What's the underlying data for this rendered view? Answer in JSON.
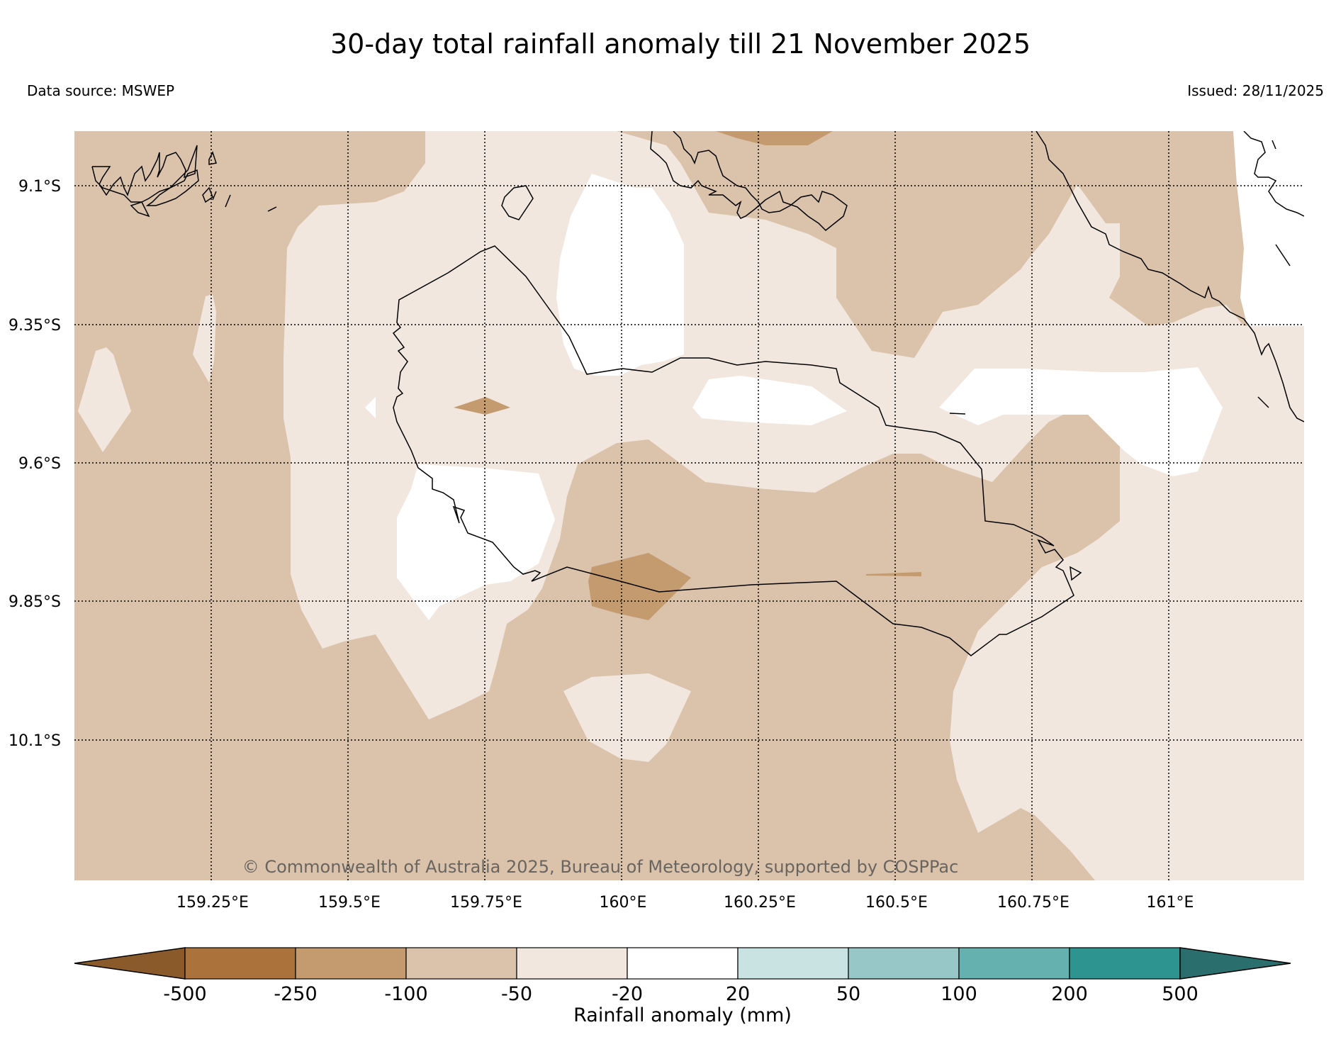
{
  "title": "30-day total rainfall anomaly till 21 November 2025",
  "data_source": "Data source: MSWEP",
  "issued": "Issued: 28/11/2025",
  "copyright": "© Commonwealth of Australia 2025, Bureau of Meteorology, supported by COSPPac",
  "lat_labels": [
    "9.1°S",
    "9.35°S",
    "9.6°S",
    "9.85°S",
    "10.1°S"
  ],
  "lon_labels": [
    "159.25°E",
    "159.5°E",
    "159.75°E",
    "160°E",
    "160.25°E",
    "160.5°E",
    "160.75°E",
    "161°E"
  ],
  "colorbar": {
    "label": "Rainfall anomaly (mm)",
    "ticks": [
      "-500",
      "-250",
      "-100",
      "-50",
      "-20",
      "20",
      "50",
      "100",
      "200",
      "500"
    ],
    "min_extend_color": "#8b5a2b",
    "max_extend_color": "#2a6e6e",
    "colors": [
      "#ab733b",
      "#c49a6f",
      "#dbc3ab",
      "#f1e7de",
      "#ffffff",
      "#c9e3e2",
      "#97c8c7",
      "#64b1b0",
      "#2e9490"
    ]
  },
  "legend_classes": {
    "c250": "#c49a6f",
    "c100": "#dbc3ab",
    "c50": "#f1e7de",
    "c20": "#ffffff"
  },
  "map_style": {
    "background": "#dbc3ab",
    "coast_color": "#000000",
    "grid": "dotted"
  }
}
